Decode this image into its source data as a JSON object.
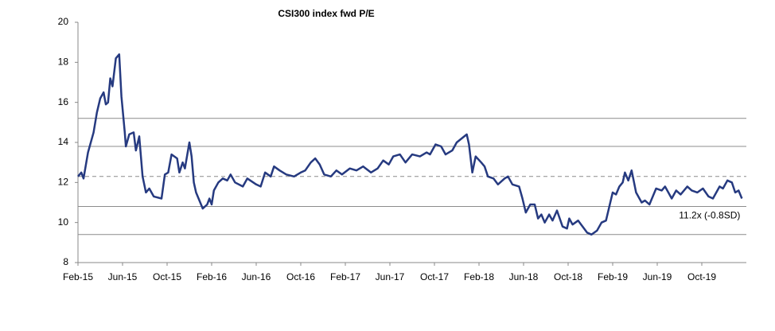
{
  "chart_data": {
    "type": "line",
    "title": "CSI300 index fwd P/E",
    "annotation": "11.2x (-0.8SD)",
    "xlim": [
      0,
      60
    ],
    "ylim": [
      8,
      20
    ],
    "yticks": [
      8,
      10,
      12,
      14,
      16,
      18,
      20
    ],
    "xticks": [
      {
        "value": 0,
        "label": "Feb-15"
      },
      {
        "value": 4,
        "label": "Jun-15"
      },
      {
        "value": 8,
        "label": "Oct-15"
      },
      {
        "value": 12,
        "label": "Feb-16"
      },
      {
        "value": 16,
        "label": "Jun-16"
      },
      {
        "value": 20,
        "label": "Oct-16"
      },
      {
        "value": 24,
        "label": "Feb-17"
      },
      {
        "value": 28,
        "label": "Jun-17"
      },
      {
        "value": 32,
        "label": "Oct-17"
      },
      {
        "value": 36,
        "label": "Feb-18"
      },
      {
        "value": 40,
        "label": "Jun-18"
      },
      {
        "value": 44,
        "label": "Oct-18"
      },
      {
        "value": 48,
        "label": "Feb-19"
      },
      {
        "value": 52,
        "label": "Jun-19"
      },
      {
        "value": 56,
        "label": "Oct-19"
      }
    ],
    "reference_lines": [
      {
        "value": 15.2,
        "style": "solid"
      },
      {
        "value": 13.8,
        "style": "solid"
      },
      {
        "value": 12.3,
        "style": "dashed"
      },
      {
        "value": 10.8,
        "style": "solid"
      },
      {
        "value": 9.4,
        "style": "solid"
      }
    ],
    "reference_color": "#8c8c8c",
    "series": [
      {
        "color": "#263a80",
        "x": [
          0,
          0.3,
          0.5,
          0.9,
          1.4,
          1.7,
          2,
          2.3,
          2.5,
          2.7,
          2.9,
          3.1,
          3.4,
          3.7,
          3.9,
          4.2,
          4.3,
          4.6,
          5,
          5.2,
          5.5,
          5.8,
          6.1,
          6.4,
          6.8,
          7.5,
          7.8,
          8.1,
          8.4,
          8.9,
          9.1,
          9.4,
          9.6,
          10,
          10.2,
          10.4,
          10.6,
          11.2,
          11.6,
          11.8,
          12,
          12.2,
          12.6,
          13,
          13.4,
          13.7,
          14.1,
          14.8,
          15.2,
          16,
          16.4,
          16.8,
          17.3,
          17.6,
          18.1,
          18.7,
          19.4,
          20,
          20.4,
          20.9,
          21.3,
          21.7,
          22.1,
          22.7,
          23.2,
          23.7,
          24.4,
          25,
          25.6,
          26.3,
          26.9,
          27.4,
          27.9,
          28.3,
          28.9,
          29.4,
          30,
          30.7,
          31.3,
          31.6,
          32.1,
          32.6,
          33,
          33.6,
          34,
          34.9,
          35.1,
          35.4,
          35.7,
          36.2,
          36.5,
          36.8,
          37.3,
          37.7,
          38.3,
          38.6,
          39,
          39.6,
          39.9,
          40.2,
          40.6,
          41,
          41.3,
          41.6,
          41.9,
          42.3,
          42.6,
          43,
          43.5,
          43.9,
          44.1,
          44.4,
          44.9,
          45.3,
          45.7,
          46.1,
          46.6,
          47,
          47.4,
          47.7,
          48,
          48.3,
          48.6,
          48.9,
          49.1,
          49.4,
          49.7,
          50.1,
          50.6,
          50.9,
          51.3,
          51.9,
          52.4,
          52.7,
          53.3,
          53.7,
          54.1,
          54.7,
          55.1,
          55.6,
          56.1,
          56.6,
          57,
          57.6,
          57.9,
          58.3,
          58.7,
          59,
          59.3,
          59.6
        ],
        "values": [
          12.3,
          12.5,
          12.2,
          13.5,
          14.5,
          15.5,
          16.2,
          16.5,
          15.9,
          16.0,
          17.2,
          16.8,
          18.2,
          18.4,
          16.3,
          14.5,
          13.8,
          14.4,
          14.5,
          13.6,
          14.3,
          12.3,
          11.5,
          11.7,
          11.3,
          11.2,
          12.4,
          12.5,
          13.4,
          13.2,
          12.5,
          13.0,
          12.7,
          14.0,
          13.3,
          12.0,
          11.5,
          10.7,
          10.9,
          11.2,
          10.9,
          11.6,
          12.0,
          12.2,
          12.1,
          12.4,
          12.0,
          11.8,
          12.2,
          11.9,
          11.8,
          12.5,
          12.3,
          12.8,
          12.6,
          12.4,
          12.3,
          12.5,
          12.6,
          13.0,
          13.2,
          12.9,
          12.4,
          12.3,
          12.6,
          12.4,
          12.7,
          12.6,
          12.8,
          12.5,
          12.7,
          13.1,
          12.9,
          13.3,
          13.4,
          13.0,
          13.4,
          13.3,
          13.5,
          13.4,
          13.9,
          13.8,
          13.4,
          13.6,
          14.0,
          14.4,
          13.9,
          12.5,
          13.3,
          13.0,
          12.8,
          12.3,
          12.2,
          11.9,
          12.2,
          12.3,
          11.9,
          11.8,
          11.2,
          10.5,
          10.9,
          10.9,
          10.2,
          10.4,
          10.0,
          10.4,
          10.1,
          10.6,
          9.8,
          9.7,
          10.2,
          9.9,
          10.1,
          9.8,
          9.5,
          9.4,
          9.6,
          10.0,
          10.1,
          10.8,
          11.5,
          11.4,
          11.8,
          12.0,
          12.5,
          12.1,
          12.6,
          11.5,
          11.0,
          11.1,
          10.9,
          11.7,
          11.6,
          11.8,
          11.2,
          11.6,
          11.4,
          11.8,
          11.6,
          11.5,
          11.7,
          11.3,
          11.2,
          11.8,
          11.7,
          12.1,
          12.0,
          11.5,
          11.6,
          11.2
        ]
      }
    ]
  }
}
